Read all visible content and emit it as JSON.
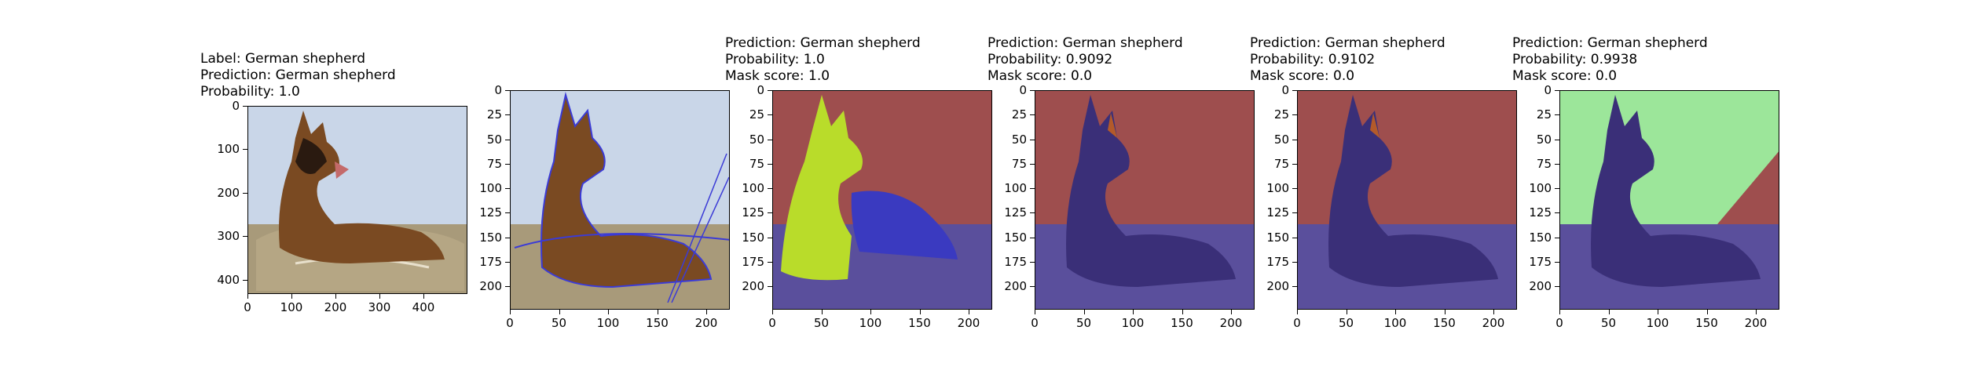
{
  "figure": {
    "panels": [
      {
        "title_lines": [
          "Label: German shepherd",
          "Prediction: German shepherd",
          "Probability: 1.0"
        ],
        "yticks": [
          "0",
          "100",
          "200",
          "300",
          "400"
        ],
        "xticks": [
          "0",
          "100",
          "200",
          "300",
          "400"
        ],
        "overlay": "none",
        "colors": {
          "bg": "#c9d6e8",
          "overlay": ""
        }
      },
      {
        "title_lines": [],
        "yticks": [
          "0",
          "25",
          "50",
          "75",
          "100",
          "125",
          "150",
          "175",
          "200"
        ],
        "xticks": [
          "0",
          "50",
          "100",
          "150",
          "200"
        ],
        "overlay": "contour",
        "colors": {
          "bg": "#c9d6e8",
          "overlay": "#3b3bd6"
        }
      },
      {
        "title_lines": [
          "Prediction: German shepherd",
          "Probability: 1.0",
          "Mask score: 1.0"
        ],
        "yticks": [
          "0",
          "25",
          "50",
          "75",
          "100",
          "125",
          "150",
          "175",
          "200"
        ],
        "xticks": [
          "0",
          "50",
          "100",
          "150",
          "200"
        ],
        "overlay": "yellow-mask",
        "colors": {
          "bg": "#9e4e4e",
          "overlay": "#b9dc2a"
        }
      },
      {
        "title_lines": [
          "Prediction: German shepherd",
          "Probability: 0.9092",
          "Mask score: 0.0"
        ],
        "yticks": [
          "0",
          "25",
          "50",
          "75",
          "100",
          "125",
          "150",
          "175",
          "200"
        ],
        "xticks": [
          "0",
          "50",
          "100",
          "150",
          "200"
        ],
        "overlay": "dark-mask",
        "colors": {
          "bg": "#9e4e4e",
          "overlay": "#3a2f78"
        }
      },
      {
        "title_lines": [
          "Prediction: German shepherd",
          "Probability: 0.9102",
          "Mask score: 0.0"
        ],
        "yticks": [
          "0",
          "25",
          "50",
          "75",
          "100",
          "125",
          "150",
          "175",
          "200"
        ],
        "xticks": [
          "0",
          "50",
          "100",
          "150",
          "200"
        ],
        "overlay": "dark-mask",
        "colors": {
          "bg": "#9e4e4e",
          "overlay": "#3a2f78"
        }
      },
      {
        "title_lines": [
          "Prediction: German shepherd",
          "Probability: 0.9938",
          "Mask score: 0.0"
        ],
        "yticks": [
          "0",
          "25",
          "50",
          "75",
          "100",
          "125",
          "150",
          "175",
          "200"
        ],
        "xticks": [
          "0",
          "50",
          "100",
          "150",
          "200"
        ],
        "overlay": "green-mask",
        "colors": {
          "bg": "#9ce69a",
          "overlay": "#3a2f78"
        }
      }
    ]
  }
}
